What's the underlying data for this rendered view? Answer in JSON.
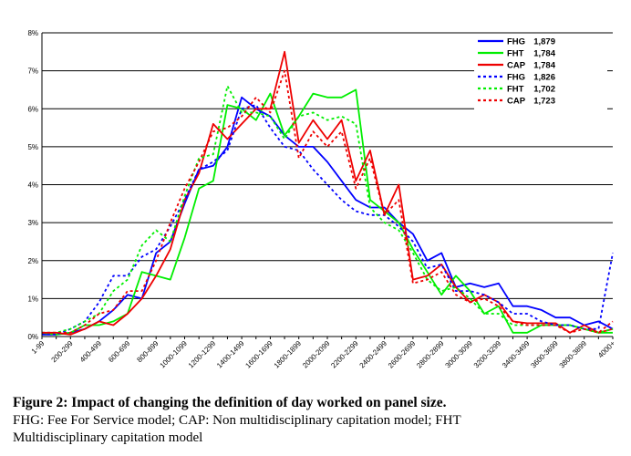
{
  "chart_data": {
    "type": "line",
    "ylim": [
      0,
      8
    ],
    "yticks": [
      "0%",
      "1%",
      "2%",
      "3%",
      "4%",
      "5%",
      "6%",
      "7%",
      "8%"
    ],
    "grid": true,
    "legend_position": "top-right",
    "categories": [
      "1-99",
      "100-199",
      "200-299",
      "300-399",
      "400-499",
      "500-599",
      "600-699",
      "700-799",
      "800-899",
      "900-999",
      "1000-1099",
      "1100-1199",
      "1200-1299",
      "1300-1399",
      "1400-1499",
      "1500-1599",
      "1600-1699",
      "1700-1799",
      "1800-1899",
      "1900-1999",
      "2000-2099",
      "2100-2199",
      "2200-2299",
      "2300-2399",
      "2400-2499",
      "2500-2599",
      "2600-2699",
      "2700-2799",
      "2800-2899",
      "2900-2999",
      "3000-3099",
      "3100-3199",
      "3200-3299",
      "3300-3399",
      "3400-3499",
      "3500-3599",
      "3600-3699",
      "3700-3799",
      "3800-3899",
      "3900-3999",
      "4000+"
    ],
    "tick_labels": [
      "1-99",
      "200-299",
      "400-499",
      "600-699",
      "800-899",
      "1000-1099",
      "1200-1299",
      "1400-1499",
      "1600-1699",
      "1800-1899",
      "2000-2099",
      "2200-2299",
      "2400-2499",
      "2600-2699",
      "2800-2899",
      "3000-3099",
      "3200-3299",
      "3400-3499",
      "3600-3699",
      "3800-3899",
      "4000+"
    ],
    "series": [
      {
        "name": "FHG",
        "legend_value": "1,879",
        "color": "#0000ff",
        "dash": false,
        "values": [
          0.05,
          0.05,
          0.1,
          0.2,
          0.4,
          0.7,
          1.1,
          1.0,
          2.2,
          2.5,
          3.5,
          4.4,
          4.5,
          5.0,
          6.3,
          6.0,
          5.8,
          5.3,
          5.0,
          5.0,
          4.6,
          4.1,
          3.6,
          3.4,
          3.4,
          3.0,
          2.7,
          2.0,
          2.2,
          1.3,
          1.4,
          1.3,
          1.4,
          0.8,
          0.8,
          0.7,
          0.5,
          0.5,
          0.3,
          0.4,
          0.2
        ]
      },
      {
        "name": "FHT",
        "legend_value": "1,784",
        "color": "#00ee00",
        "dash": false,
        "values": [
          0.1,
          0.05,
          0.1,
          0.3,
          0.3,
          0.4,
          0.6,
          1.7,
          1.6,
          1.5,
          2.6,
          3.9,
          4.1,
          6.1,
          6.0,
          5.7,
          6.4,
          5.3,
          5.8,
          6.4,
          6.3,
          6.3,
          6.5,
          3.6,
          3.3,
          3.0,
          2.3,
          1.7,
          1.1,
          1.6,
          1.2,
          0.6,
          0.8,
          0.1,
          0.1,
          0.3,
          0.3,
          0.3,
          0.2,
          0.1,
          0.1
        ]
      },
      {
        "name": "CAP",
        "legend_value": "1,784",
        "color": "#ee0000",
        "dash": false,
        "values": [
          0.1,
          0.1,
          0.05,
          0.2,
          0.4,
          0.3,
          0.6,
          1.0,
          1.6,
          2.3,
          3.6,
          4.3,
          5.6,
          5.2,
          5.6,
          6.0,
          6.0,
          7.5,
          5.1,
          5.7,
          5.2,
          5.7,
          4.1,
          4.9,
          3.2,
          4.0,
          1.5,
          1.6,
          1.9,
          1.3,
          0.9,
          1.1,
          0.9,
          0.4,
          0.35,
          0.35,
          0.35,
          0.1,
          0.3,
          0.1,
          0.2
        ]
      },
      {
        "name": "FHG",
        "legend_value": "1,826",
        "color": "#0000ff",
        "dash": true,
        "values": [
          0.1,
          0.05,
          0.2,
          0.4,
          0.9,
          1.6,
          1.6,
          2.1,
          2.3,
          2.9,
          3.6,
          4.4,
          4.6,
          4.9,
          6.0,
          6.1,
          5.5,
          5.0,
          4.9,
          4.4,
          4.0,
          3.6,
          3.3,
          3.2,
          3.2,
          2.9,
          2.5,
          1.8,
          1.9,
          1.2,
          1.2,
          1.1,
          0.9,
          0.6,
          0.6,
          0.4,
          0.3,
          0.3,
          0.2,
          0.2,
          2.2
        ]
      },
      {
        "name": "FHT",
        "legend_value": "1,702",
        "color": "#00ee00",
        "dash": true,
        "values": [
          0.1,
          0.1,
          0.2,
          0.4,
          0.6,
          1.2,
          1.5,
          2.4,
          2.8,
          2.5,
          3.7,
          4.7,
          4.8,
          6.6,
          5.9,
          5.9,
          5.8,
          5.2,
          5.8,
          5.9,
          5.7,
          5.8,
          5.6,
          3.4,
          3.0,
          2.8,
          2.2,
          1.5,
          1.2,
          1.3,
          1.0,
          0.6,
          0.6,
          0.3,
          0.3,
          0.3,
          0.3,
          0.3,
          0.2,
          0.1,
          0.2
        ]
      },
      {
        "name": "CAP",
        "legend_value": "1,723",
        "color": "#ee0000",
        "dash": true,
        "values": [
          0.1,
          0.1,
          0.1,
          0.3,
          0.6,
          0.7,
          1.2,
          1.2,
          2.0,
          3.0,
          3.9,
          4.6,
          5.4,
          5.5,
          5.8,
          6.3,
          5.9,
          7.0,
          4.7,
          5.4,
          5.0,
          5.4,
          3.9,
          4.7,
          3.2,
          3.6,
          1.4,
          1.5,
          1.7,
          1.1,
          0.9,
          1.0,
          0.8,
          0.4,
          0.3,
          0.3,
          0.3,
          0.1,
          0.2,
          0.1,
          0.4
        ]
      }
    ]
  },
  "caption": {
    "title": "Figure 2: Impact of changing the definition of day worked on panel size.",
    "line1": "FHG: Fee For Service model; CAP: Non multidisciplinary capitation model; FHT",
    "line2": "Multidisciplinary capitation model"
  }
}
